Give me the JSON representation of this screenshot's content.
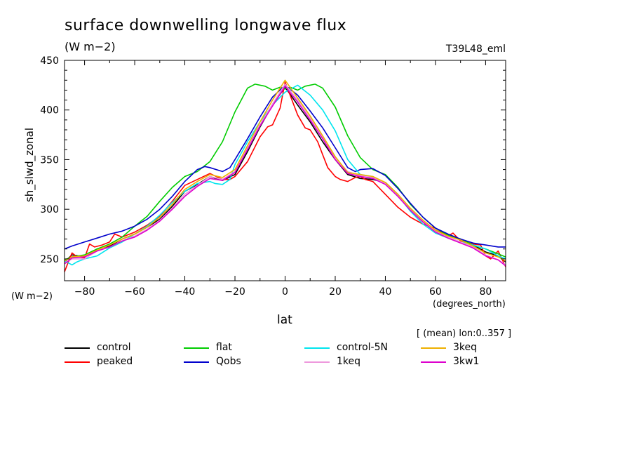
{
  "chart_data": {
    "type": "line",
    "title": "surface downwelling longwave flux",
    "subtitle": "(W m−2)",
    "experiment_label": "T39L48_eml",
    "ylabel": "sh_slwd_zonal",
    "yunits": "(W m−2)",
    "xlabel": "lat",
    "xunits": "(degrees_north)",
    "averaging_note": "[ (mean) lon:0..357 ]",
    "xlim": [
      -88,
      88
    ],
    "ylim": [
      228,
      450
    ],
    "xticks": [
      -80,
      -60,
      -40,
      -20,
      0,
      20,
      40,
      60,
      80
    ],
    "yticks": [
      250,
      300,
      350,
      400,
      450
    ],
    "grid": false,
    "legend_position": "bottom",
    "series": [
      {
        "name": "control",
        "color": "#000000",
        "x": [
          -88,
          -85,
          -80,
          -75,
          -70,
          -65,
          -60,
          -55,
          -50,
          -45,
          -40,
          -35,
          -30,
          -25,
          -20,
          -15,
          -10,
          -5,
          0,
          5,
          10,
          15,
          20,
          25,
          30,
          35,
          40,
          45,
          50,
          55,
          60,
          65,
          70,
          75,
          80,
          85,
          88
        ],
        "y": [
          247,
          254,
          252,
          260,
          263,
          270,
          275,
          282,
          290,
          303,
          318,
          325,
          333,
          329,
          335,
          358,
          383,
          405,
          423,
          405,
          388,
          368,
          350,
          335,
          331,
          330,
          327,
          315,
          300,
          288,
          279,
          273,
          270,
          264,
          257,
          253,
          247
        ]
      },
      {
        "name": "peaked",
        "color": "#ff0000",
        "x": [
          -88,
          -86,
          -85,
          -83,
          -80,
          -78,
          -76,
          -73,
          -70,
          -68,
          -65,
          -60,
          -55,
          -50,
          -45,
          -40,
          -35,
          -30,
          -25,
          -22,
          -20,
          -15,
          -10,
          -7,
          -5,
          -2,
          0,
          2,
          5,
          8,
          10,
          13,
          15,
          17,
          20,
          22,
          25,
          28,
          30,
          32,
          35,
          40,
          45,
          50,
          55,
          60,
          65,
          67,
          70,
          75,
          78,
          80,
          82,
          85,
          88
        ],
        "y": [
          237,
          250,
          256,
          252,
          251,
          265,
          262,
          264,
          267,
          275,
          272,
          277,
          284,
          293,
          308,
          324,
          330,
          336,
          330,
          330,
          333,
          348,
          373,
          383,
          385,
          402,
          428,
          415,
          395,
          382,
          380,
          368,
          355,
          342,
          333,
          330,
          328,
          332,
          333,
          330,
          328,
          315,
          302,
          292,
          285,
          281,
          273,
          276,
          268,
          265,
          264,
          253,
          250,
          258,
          242
        ]
      },
      {
        "name": "flat",
        "color": "#00cc00",
        "x": [
          -88,
          -85,
          -80,
          -75,
          -70,
          -65,
          -60,
          -55,
          -50,
          -45,
          -40,
          -35,
          -30,
          -25,
          -20,
          -15,
          -12,
          -8,
          -5,
          -2,
          0,
          2,
          5,
          8,
          12,
          15,
          20,
          25,
          30,
          35,
          40,
          45,
          50,
          55,
          60,
          65,
          70,
          75,
          80,
          85,
          88
        ],
        "y": [
          249,
          252,
          254,
          260,
          265,
          272,
          283,
          293,
          308,
          322,
          333,
          338,
          348,
          368,
          398,
          422,
          426,
          424,
          420,
          423,
          421,
          423,
          420,
          424,
          426,
          422,
          403,
          374,
          352,
          340,
          335,
          322,
          305,
          292,
          281,
          274,
          270,
          264,
          260,
          255,
          252
        ]
      },
      {
        "name": "Qobs",
        "color": "#0000cc",
        "x": [
          -88,
          -85,
          -80,
          -75,
          -70,
          -65,
          -60,
          -55,
          -50,
          -45,
          -40,
          -35,
          -32,
          -30,
          -25,
          -22,
          -20,
          -15,
          -10,
          -5,
          0,
          5,
          10,
          15,
          20,
          25,
          28,
          30,
          35,
          40,
          45,
          50,
          55,
          60,
          65,
          70,
          75,
          80,
          85,
          88
        ],
        "y": [
          260,
          263,
          267,
          271,
          275,
          278,
          283,
          290,
          300,
          313,
          328,
          340,
          343,
          342,
          338,
          342,
          350,
          371,
          393,
          413,
          425,
          415,
          399,
          382,
          362,
          342,
          338,
          340,
          341,
          334,
          321,
          306,
          292,
          281,
          275,
          270,
          266,
          264,
          262,
          262
        ]
      },
      {
        "name": "control-5N",
        "color": "#00e5ee",
        "x": [
          -88,
          -85,
          -83,
          -80,
          -75,
          -70,
          -65,
          -60,
          -55,
          -50,
          -45,
          -40,
          -35,
          -30,
          -28,
          -25,
          -22,
          -20,
          -15,
          -10,
          -5,
          0,
          5,
          10,
          15,
          20,
          25,
          30,
          35,
          40,
          45,
          50,
          55,
          60,
          65,
          70,
          75,
          80,
          85,
          88
        ],
        "y": [
          248,
          244,
          247,
          250,
          253,
          261,
          267,
          275,
          283,
          294,
          307,
          318,
          326,
          328,
          326,
          325,
          330,
          345,
          368,
          388,
          405,
          418,
          425,
          415,
          400,
          379,
          350,
          335,
          333,
          326,
          314,
          298,
          285,
          276,
          271,
          267,
          264,
          260,
          253,
          250
        ]
      },
      {
        "name": "1keq",
        "color": "#ee99dd",
        "x": [
          -88,
          -85,
          -80,
          -75,
          -70,
          -65,
          -60,
          -55,
          -50,
          -45,
          -40,
          -35,
          -30,
          -25,
          -20,
          -15,
          -10,
          -5,
          0,
          5,
          10,
          15,
          20,
          25,
          30,
          35,
          40,
          45,
          50,
          55,
          60,
          65,
          70,
          75,
          80,
          85,
          88
        ],
        "y": [
          246,
          250,
          250,
          258,
          262,
          268,
          273,
          280,
          289,
          301,
          315,
          324,
          333,
          330,
          338,
          362,
          385,
          406,
          426,
          410,
          392,
          373,
          352,
          338,
          334,
          332,
          326,
          314,
          300,
          288,
          278,
          272,
          267,
          262,
          254,
          249,
          244
        ]
      },
      {
        "name": "3keq",
        "color": "#eeb000",
        "x": [
          -88,
          -85,
          -80,
          -75,
          -70,
          -65,
          -60,
          -55,
          -50,
          -45,
          -40,
          -35,
          -30,
          -25,
          -20,
          -15,
          -10,
          -5,
          0,
          5,
          10,
          15,
          20,
          25,
          30,
          35,
          40,
          45,
          50,
          55,
          60,
          65,
          70,
          75,
          80,
          85,
          88
        ],
        "y": [
          248,
          252,
          253,
          259,
          264,
          270,
          275,
          282,
          292,
          305,
          320,
          328,
          335,
          332,
          340,
          364,
          388,
          410,
          430,
          412,
          394,
          374,
          353,
          337,
          335,
          333,
          327,
          315,
          301,
          289,
          279,
          273,
          269,
          263,
          256,
          252,
          248
        ]
      },
      {
        "name": "3kw1",
        "color": "#dd00cc",
        "x": [
          -88,
          -85,
          -80,
          -75,
          -70,
          -65,
          -60,
          -55,
          -50,
          -45,
          -40,
          -35,
          -30,
          -25,
          -20,
          -15,
          -10,
          -5,
          0,
          5,
          10,
          15,
          20,
          25,
          30,
          35,
          40,
          45,
          50,
          55,
          60,
          65,
          70,
          75,
          80,
          85,
          88
        ],
        "y": [
          245,
          251,
          252,
          258,
          262,
          268,
          272,
          279,
          288,
          300,
          313,
          323,
          331,
          329,
          337,
          360,
          384,
          404,
          424,
          408,
          390,
          371,
          350,
          336,
          333,
          331,
          325,
          313,
          299,
          287,
          277,
          271,
          266,
          261,
          253,
          249,
          243
        ]
      }
    ]
  }
}
